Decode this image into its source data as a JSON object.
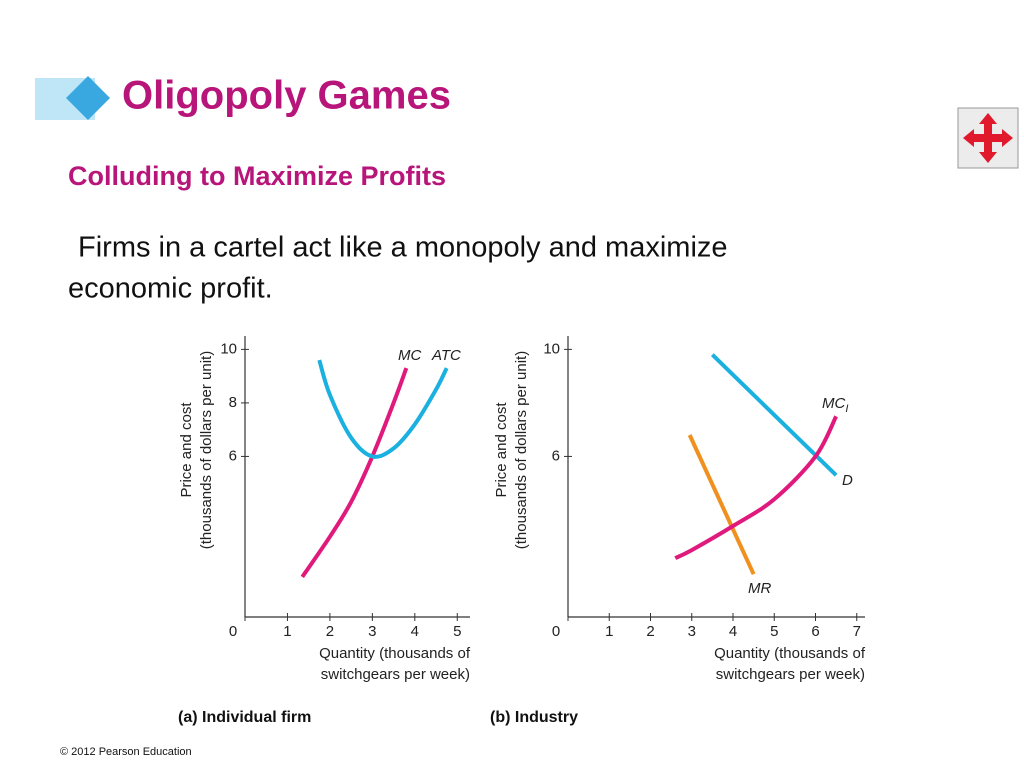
{
  "slide": {
    "title": "Oligopoly Games",
    "subtitle": "Colluding to Maximize Profits",
    "body": [
      "Firms in a cartel act like a monopoly and maximize",
      "economic profit."
    ],
    "footer": "© 2012 Pearson Education"
  },
  "chart_data": [
    {
      "type": "line",
      "caption": "(a) Individual firm",
      "y_label": [
        "Price and cost",
        "(thousands of dollars per unit)"
      ],
      "x_label": [
        "Quantity (thousands of",
        "switchgears per week)"
      ],
      "xlim": [
        0,
        5.3
      ],
      "ylim": [
        0,
        10.5
      ],
      "xticks": [
        0,
        1,
        2,
        3,
        4,
        5
      ],
      "yticks": [
        6,
        8,
        10
      ],
      "series": [
        {
          "name": "MC",
          "color": "#e0197d",
          "x": [
            1.35,
            2,
            2.5,
            3,
            3.5,
            3.8
          ],
          "values": [
            1.5,
            3,
            4.3,
            6,
            8,
            9.3
          ]
        },
        {
          "name": "ATC",
          "color": "#1ab0e0",
          "x": [
            1.75,
            2,
            2.5,
            3,
            3.5,
            4,
            4.5,
            4.75
          ],
          "values": [
            9.6,
            8.3,
            6.7,
            6,
            6.3,
            7.2,
            8.5,
            9.3
          ]
        }
      ]
    },
    {
      "type": "line",
      "caption": "(b) Industry",
      "y_label": [
        "Price and cost",
        "(thousands of dollars per unit)"
      ],
      "x_label": [
        "Quantity (thousands of",
        "switchgears per week)"
      ],
      "xlim": [
        0,
        7.2
      ],
      "ylim": [
        0,
        10.5
      ],
      "xticks": [
        0,
        1,
        2,
        3,
        4,
        5,
        6,
        7
      ],
      "yticks": [
        6,
        10
      ],
      "series": [
        {
          "name": "D",
          "color": "#1ab0e0",
          "x": [
            3.5,
            6.5
          ],
          "values": [
            9.8,
            5.3
          ]
        },
        {
          "name": "MR",
          "color": "#f0901e",
          "x": [
            2.95,
            4.5
          ],
          "values": [
            6.8,
            1.6
          ]
        },
        {
          "name": "MC",
          "subscript": "I",
          "color": "#e0197d",
          "x": [
            2.6,
            3,
            4,
            5,
            6,
            6.5
          ],
          "values": [
            2.2,
            2.5,
            3.4,
            4.4,
            6,
            7.5
          ]
        }
      ]
    }
  ]
}
